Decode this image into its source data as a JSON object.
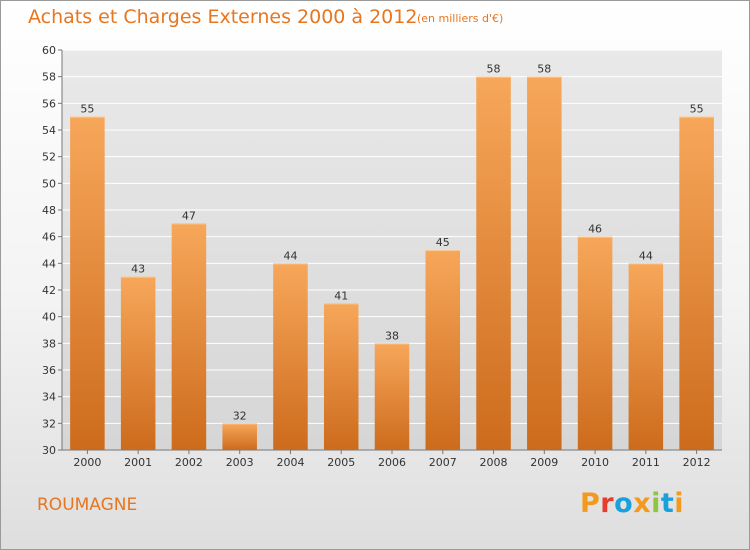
{
  "header": {
    "title": "Achats et Charges Externes 2000 à 2012",
    "subtitle": "(en milliers d'€)"
  },
  "footer": {
    "location": "ROUMAGNE",
    "brand": "Proxiti",
    "brand_colors": [
      "#f39a1e",
      "#e93b2b",
      "#1aa1dc",
      "#f39a1e",
      "#8dc63f",
      "#1aa1dc",
      "#f39a1e"
    ]
  },
  "colors": {
    "bar_top": "#f7a75a",
    "bar_bottom": "#cd6b1c",
    "accent": "#e8761e",
    "grid": "#ffffff",
    "text": "#333333"
  },
  "chart_data": {
    "type": "bar",
    "categories": [
      "2000",
      "2001",
      "2002",
      "2003",
      "2004",
      "2005",
      "2006",
      "2007",
      "2008",
      "2009",
      "2010",
      "2011",
      "2012"
    ],
    "values": [
      55,
      43,
      47,
      32,
      44,
      41,
      38,
      45,
      58,
      58,
      46,
      44,
      55
    ],
    "data_labels": [
      "55",
      "43",
      "47",
      "32",
      "44",
      "41",
      "38",
      "45",
      "58",
      "58",
      "46",
      "44",
      "55"
    ],
    "y_ticks": [
      "30",
      "32",
      "34",
      "36",
      "38",
      "40",
      "42",
      "44",
      "46",
      "48",
      "50",
      "52",
      "54",
      "56",
      "58",
      "60"
    ],
    "ylim": [
      30,
      60
    ],
    "grid": true,
    "title": "Achats et Charges Externes 2000 à 2012",
    "xlabel": "",
    "ylabel": ""
  }
}
